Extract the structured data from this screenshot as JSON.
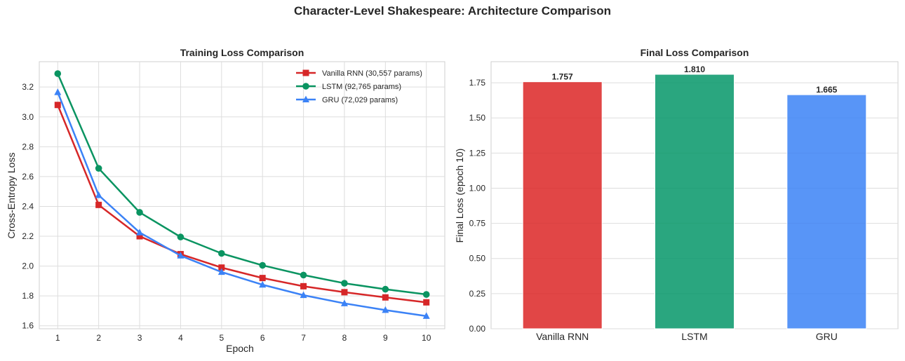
{
  "figure": {
    "suptitle": "Character-Level Shakespeare: Architecture Comparison"
  },
  "chart_data": [
    {
      "type": "line",
      "title": "Training Loss Comparison",
      "xlabel": "Epoch",
      "ylabel": "Cross-Entropy Loss",
      "x": [
        1,
        2,
        3,
        4,
        5,
        6,
        7,
        8,
        9,
        10
      ],
      "xlim": [
        0.55,
        10.45
      ],
      "ylim": [
        1.58,
        3.37
      ],
      "yticks": [
        1.6,
        1.8,
        2.0,
        2.2,
        2.4,
        2.6,
        2.8,
        3.0,
        3.2
      ],
      "ytick_labels": [
        "1.6",
        "1.8",
        "2.0",
        "2.2",
        "2.4",
        "2.6",
        "2.8",
        "3.0",
        "3.2"
      ],
      "grid": true,
      "legend": "top-right",
      "series": [
        {
          "name": "Vanilla RNN (30,557 params)",
          "color": "#d62728",
          "marker": "square",
          "values": [
            3.08,
            2.41,
            2.2,
            2.08,
            1.99,
            1.92,
            1.865,
            1.825,
            1.79,
            1.757
          ]
        },
        {
          "name": "LSTM (92,765 params)",
          "color": "#0a9461",
          "marker": "circle",
          "values": [
            3.29,
            2.655,
            2.36,
            2.195,
            2.085,
            2.005,
            1.94,
            1.885,
            1.845,
            1.81
          ]
        },
        {
          "name": "GRU (72,029 params)",
          "color": "#3b82f6",
          "marker": "triangle",
          "values": [
            3.165,
            2.475,
            2.225,
            2.07,
            1.96,
            1.875,
            1.805,
            1.75,
            1.705,
            1.665
          ]
        }
      ]
    },
    {
      "type": "bar",
      "title": "Final Loss Comparison",
      "xlabel": "",
      "ylabel": "Final Loss (epoch 10)",
      "categories": [
        "Vanilla RNN",
        "LSTM",
        "GRU"
      ],
      "values": [
        1.757,
        1.81,
        1.665
      ],
      "value_labels": [
        "1.757",
        "1.810",
        "1.665"
      ],
      "colors": [
        "#dc2626",
        "#059669",
        "#3b82f6"
      ],
      "ylim": [
        0,
        1.9
      ],
      "yticks": [
        0,
        0.25,
        0.5,
        0.75,
        1.0,
        1.25,
        1.5,
        1.75
      ],
      "ytick_labels": [
        "0.00",
        "0.25",
        "0.50",
        "0.75",
        "1.00",
        "1.25",
        "1.50",
        "1.75"
      ],
      "grid": true
    }
  ]
}
